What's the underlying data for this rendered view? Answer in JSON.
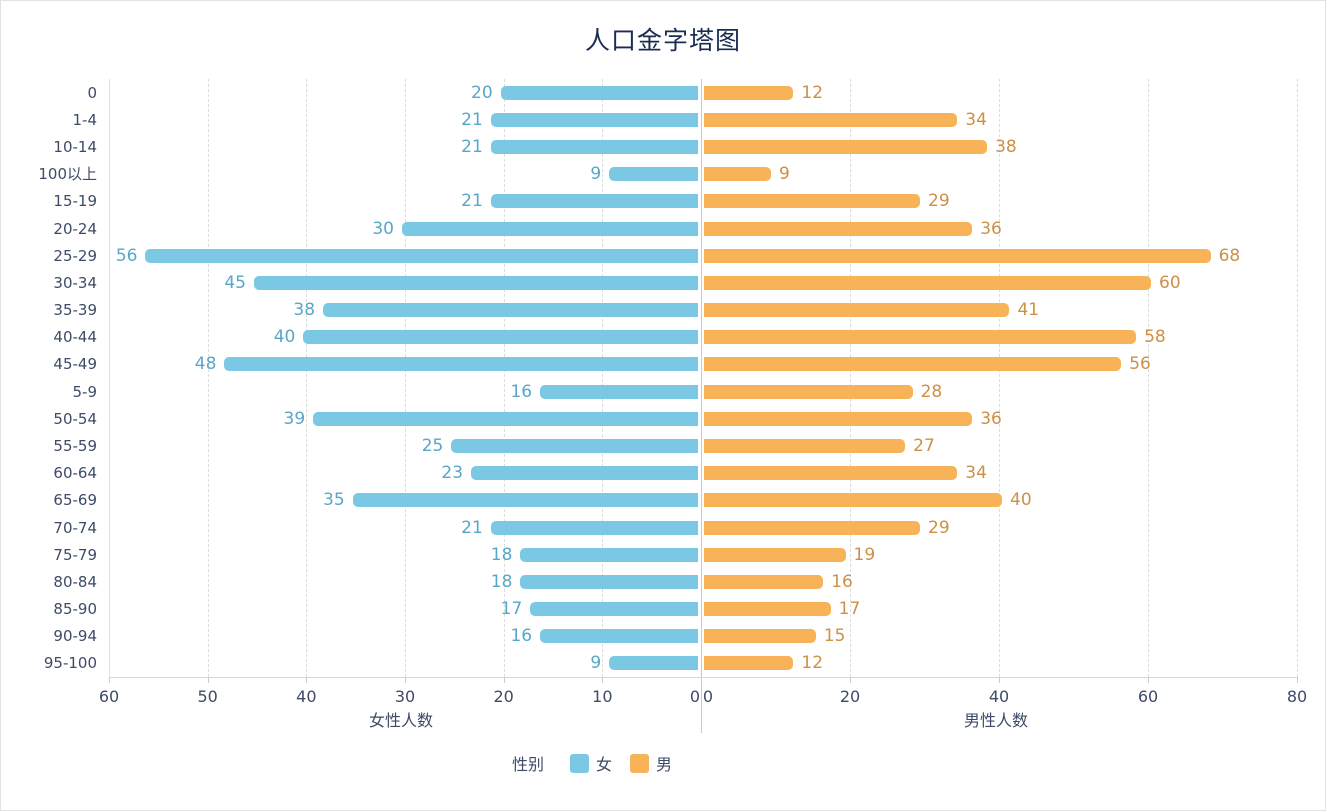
{
  "chart": {
    "title": "人口金字塔图"
  },
  "chart_data": {
    "type": "bar",
    "subtype": "population-pyramid",
    "orientation": "horizontal",
    "title": "人口金字塔图",
    "grid": true,
    "categories": [
      "0",
      "1-4",
      "10-14",
      "100以上",
      "15-19",
      "20-24",
      "25-29",
      "30-34",
      "35-39",
      "40-44",
      "45-49",
      "5-9",
      "50-54",
      "55-59",
      "60-64",
      "65-69",
      "70-74",
      "75-79",
      "80-84",
      "85-90",
      "90-94",
      "95-100"
    ],
    "series": [
      {
        "name": "女",
        "side": "left",
        "color": "#7bc8e4",
        "label_color": "#58a7c8",
        "values": [
          20,
          21,
          21,
          9,
          21,
          30,
          56,
          45,
          38,
          40,
          48,
          16,
          39,
          25,
          23,
          35,
          21,
          18,
          18,
          17,
          16,
          9
        ]
      },
      {
        "name": "男",
        "side": "right",
        "color": "#f8b257",
        "label_color": "#cc9047",
        "values": [
          12,
          34,
          38,
          9,
          29,
          36,
          68,
          60,
          41,
          58,
          56,
          28,
          36,
          27,
          34,
          40,
          29,
          19,
          16,
          17,
          15,
          12
        ]
      }
    ],
    "left_axis": {
      "label": "女性人数",
      "max": 60,
      "ticks": [
        60,
        50,
        40,
        30,
        20,
        10,
        0
      ]
    },
    "right_axis": {
      "label": "男性人数",
      "max": 80,
      "ticks": [
        0,
        20,
        40,
        60,
        80
      ]
    },
    "legend": {
      "title": "性别",
      "position": "bottom",
      "items": [
        "女",
        "男"
      ]
    }
  },
  "legend": {
    "title": "性别",
    "items": [
      {
        "label": "女",
        "color": "#7bc8e4"
      },
      {
        "label": "男",
        "color": "#f8b257"
      }
    ]
  }
}
